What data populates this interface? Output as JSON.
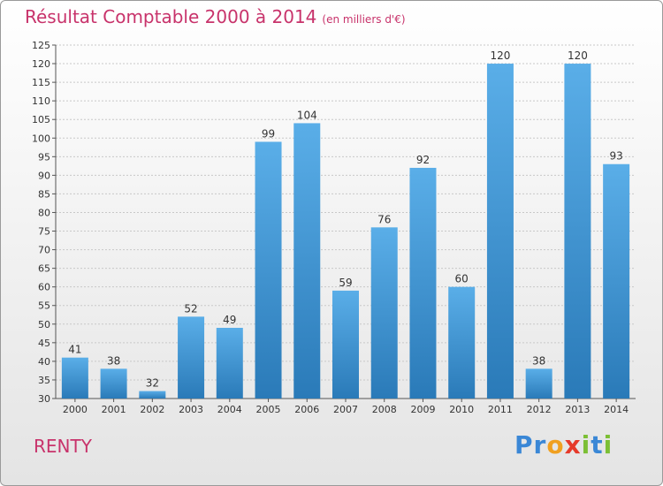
{
  "header": {
    "title": "Résultat Comptable 2000 à 2014",
    "subtitle": "(en milliers d'€)"
  },
  "footer": {
    "city": "RENTY",
    "logo_letters": [
      {
        "ch": "P",
        "color": "#3a87d6"
      },
      {
        "ch": "r",
        "color": "#3a87d6"
      },
      {
        "ch": "o",
        "color": "#f0a020"
      },
      {
        "ch": "x",
        "color": "#e63a2a"
      },
      {
        "ch": "i",
        "color": "#7cbf35"
      },
      {
        "ch": "t",
        "color": "#3a87d6"
      },
      {
        "ch": "i",
        "color": "#7cbf35"
      }
    ]
  },
  "colors": {
    "bar_top": "#5aaee8",
    "bar_bottom": "#2a7ab8",
    "grid": "#c8c8c8",
    "title": "#c8336b"
  },
  "chart_data": {
    "type": "bar",
    "categories": [
      "2000",
      "2001",
      "2002",
      "2003",
      "2004",
      "2005",
      "2006",
      "2007",
      "2008",
      "2009",
      "2010",
      "2011",
      "2012",
      "2013",
      "2014"
    ],
    "values": [
      41,
      38,
      32,
      52,
      49,
      99,
      104,
      59,
      76,
      92,
      60,
      120,
      38,
      120,
      93
    ],
    "ylim": [
      30,
      125
    ],
    "ytick_step": 5,
    "grid": true
  }
}
